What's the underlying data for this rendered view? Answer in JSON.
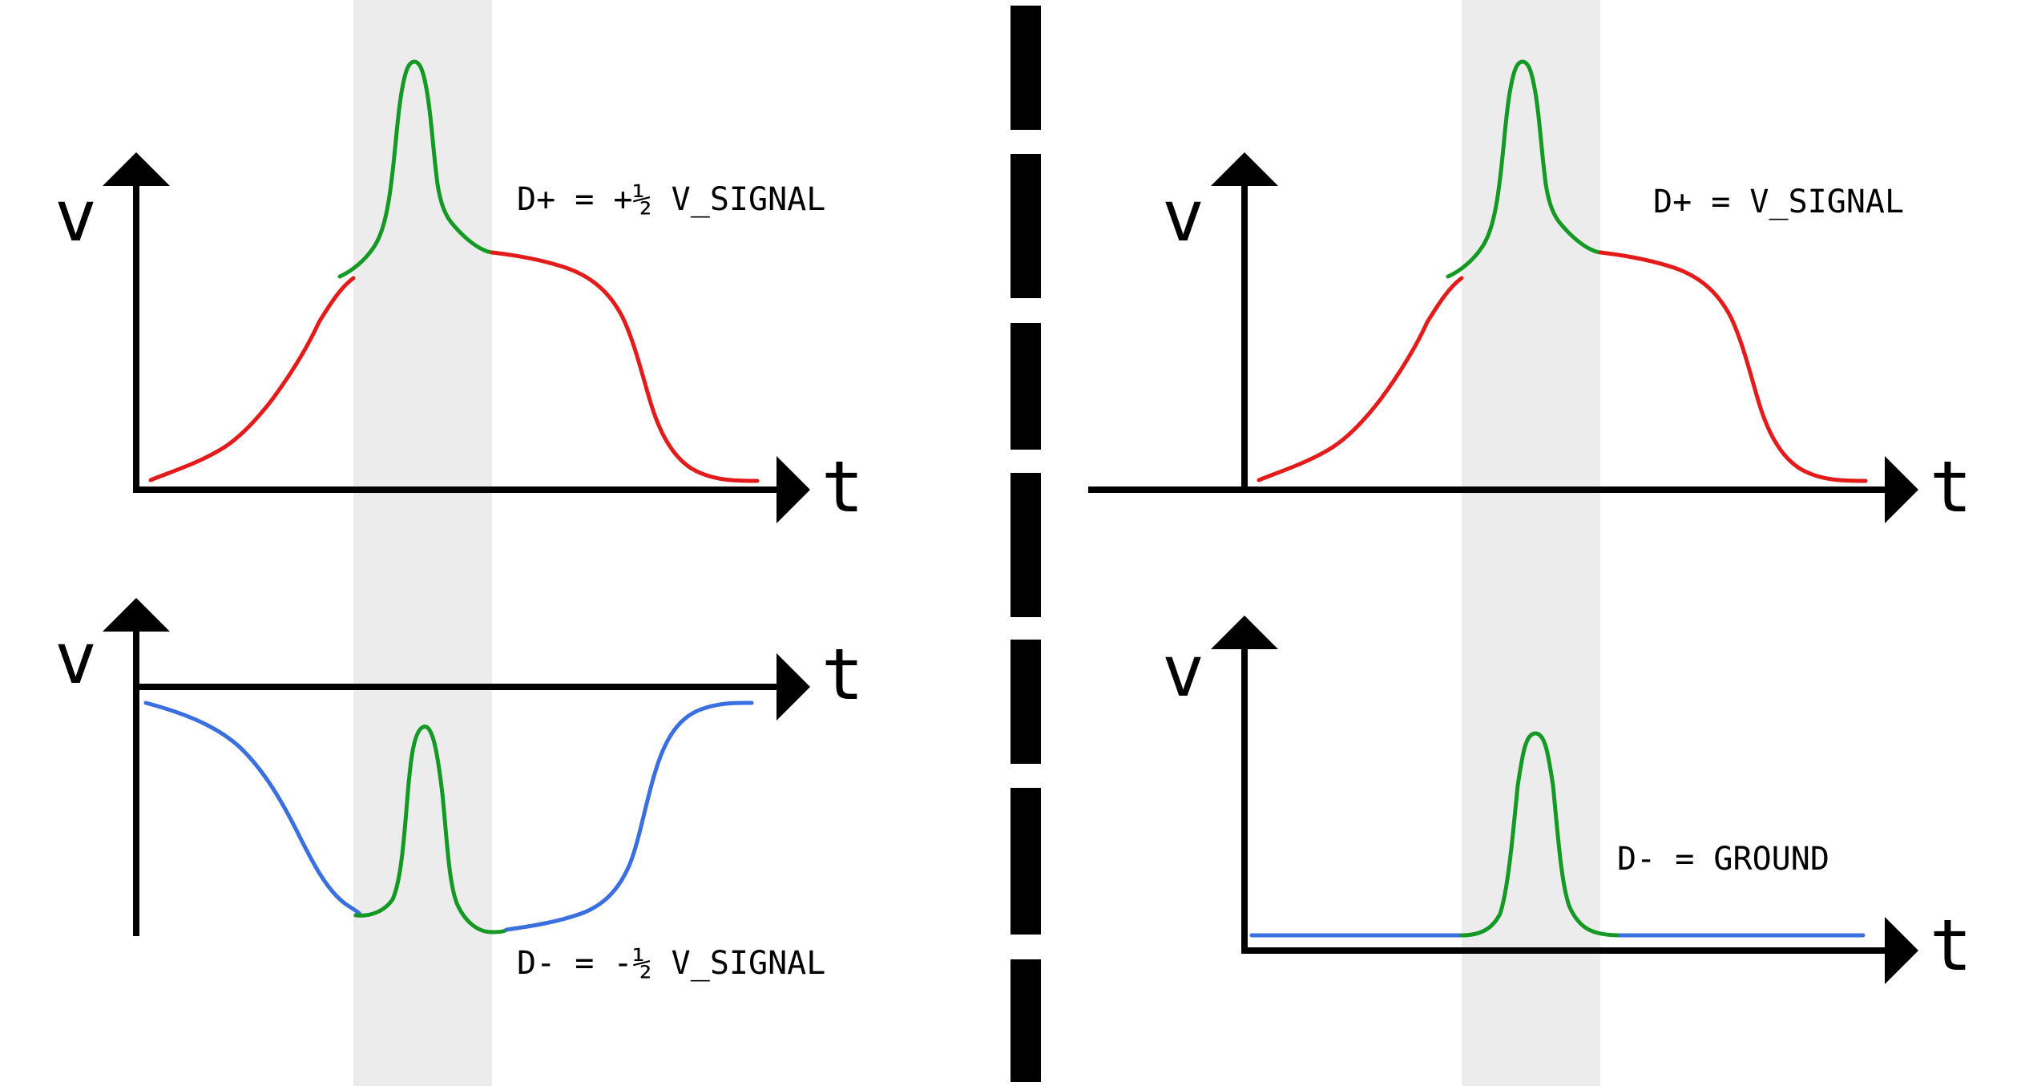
{
  "colors": {
    "highlight_band": "#ececec",
    "axis": "#000000",
    "d_plus_signal": "#e31b1b",
    "d_minus_signal": "#3a6fe0",
    "noise_spike": "#149a24",
    "divider": "#000000"
  },
  "panels": {
    "top_left": {
      "y_axis_label": "v",
      "x_axis_label": "t",
      "equation": "D+ = +½ V_SIGNAL"
    },
    "bottom_left": {
      "y_axis_label": "v",
      "x_axis_label": "t",
      "equation": "D- = -½ V_SIGNAL"
    },
    "top_right": {
      "y_axis_label": "v",
      "x_axis_label": "t",
      "equation": "D+ = V_SIGNAL"
    },
    "bottom_right": {
      "y_axis_label": "v",
      "x_axis_label": "t",
      "equation": "D- = GROUND"
    }
  }
}
